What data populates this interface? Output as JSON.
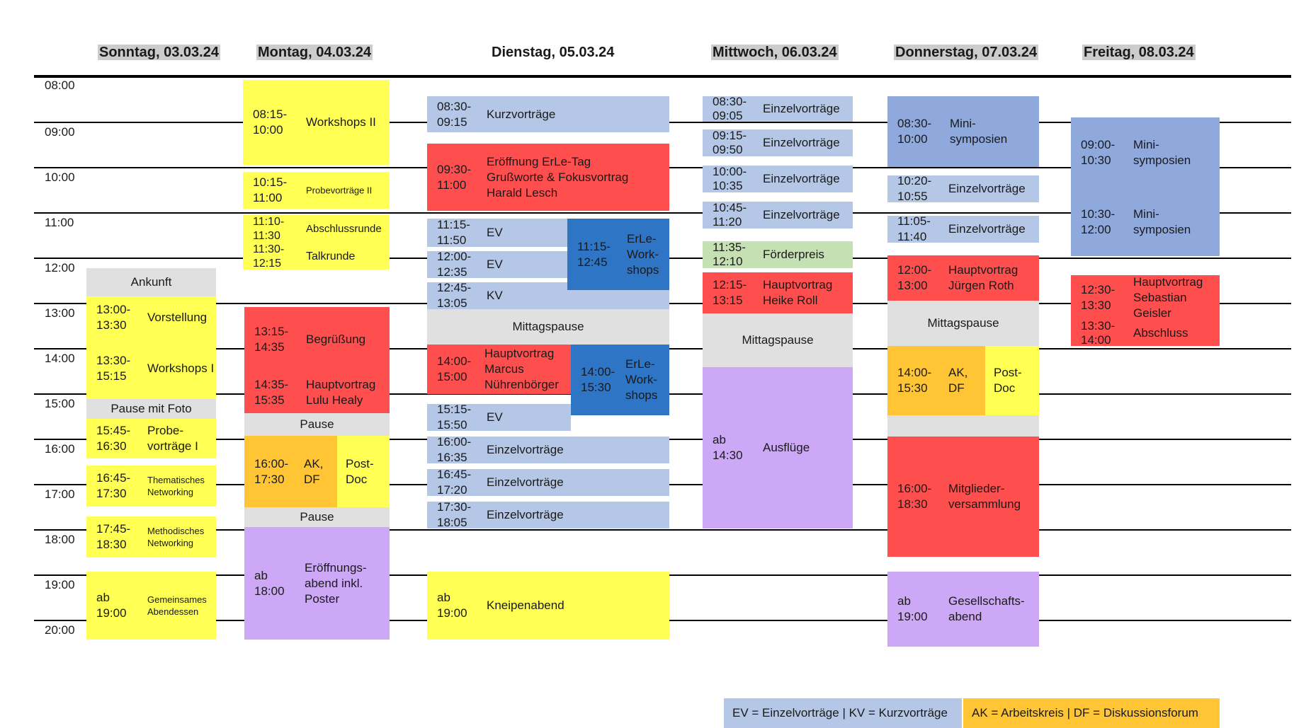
{
  "days": [
    {
      "label": "Sonntag, 03.03.24"
    },
    {
      "label": "Montag, 04.03.24"
    },
    {
      "label": "Dienstag, 05.03.24"
    },
    {
      "label": "Mittwoch, 06.03.24"
    },
    {
      "label": "Donnerstag, 07.03.24"
    },
    {
      "label": "Freitag, 08.03.24"
    }
  ],
  "times": [
    "08:00",
    "09:00",
    "10:00",
    "11:00",
    "12:00",
    "13:00",
    "14:00",
    "15:00",
    "16:00",
    "17:00",
    "18:00",
    "19:00",
    "20:00"
  ],
  "colors": {
    "yellow": "#ffff54",
    "red": "#ff4e4e",
    "light_blue": "#b4c7e7",
    "dark_blue": "#2e75c6",
    "mid_blue": "#8fa9dc",
    "grey": "#e0e0e0",
    "orange": "#ffc534",
    "purple": "#cda8f7",
    "green": "#c5e0b3"
  },
  "events": {
    "sun": {
      "arrival": "Ankunft",
      "vorstellung": {
        "time": "13:00-\n13:30",
        "label": "Vorstellung"
      },
      "workshops1": {
        "time": "13:30-\n15:15",
        "label": "Workshops I"
      },
      "pause_foto": "Pause mit Foto",
      "probe1": {
        "time": "15:45-\n16:30",
        "label": "Probe-\nvorträge I"
      },
      "thematic": {
        "time": "16:45-\n17:30",
        "label": "Thematisches\nNetworking"
      },
      "method": {
        "time": "17:45-\n18:30",
        "label": "Methodisches\nNetworking"
      },
      "dinner": {
        "time": "ab\n19:00",
        "label": "Gemeinsames\nAbendessen"
      }
    },
    "mon": {
      "workshops2": {
        "time": "08:15-\n10:00",
        "label": "Workshops II"
      },
      "probe2": {
        "time": "10:15-\n11:00",
        "label": "Probevorträge II"
      },
      "abschluss": {
        "time": "11:10-\n11:30",
        "label": "Abschlussrunde"
      },
      "talk": {
        "time": "11:30-\n12:15",
        "label": "Talkrunde"
      },
      "begruessung": {
        "time": "13:15-\n14:35",
        "label": "Begrüßung"
      },
      "keynote": {
        "time": "14:35-\n15:35",
        "label": "Hauptvortrag\nLulu Healy"
      },
      "pause1": "Pause",
      "ak": {
        "time": "16:00-\n17:30",
        "label": "AK,\nDF"
      },
      "postdoc": {
        "label": "Post-\nDoc"
      },
      "pause2": "Pause",
      "evening": {
        "time": "ab\n18:00",
        "label": "Eröffnungs-\nabend inkl.\nPoster"
      }
    },
    "tue": {
      "kv1": {
        "time": "08:30-\n09:15",
        "label": "Kurzvorträge"
      },
      "opening": {
        "time": "09:30-\n11:00",
        "label": "Eröffnung ErLe-Tag\nGrußworte & Fokusvortrag\nHarald Lesch"
      },
      "ev1": {
        "time": "11:15-\n11:50",
        "label": "EV"
      },
      "ev2": {
        "time": "12:00-\n12:35",
        "label": "EV"
      },
      "kv2": {
        "time": "12:45-\n13:05",
        "label": "KV"
      },
      "ws1": {
        "time": "11:15-\n12:45",
        "label": "ErLe-\nWork-\nshops"
      },
      "lunch": "Mittagspause",
      "keynote": {
        "time": "14:00-\n15:00",
        "label": "Hauptvortrag\nMarcus\nNührenbörger"
      },
      "ws2": {
        "time": "14:00-\n15:30",
        "label": "ErLe-\nWork-\nshops"
      },
      "ev3": {
        "time": "15:15-\n15:50",
        "label": "EV"
      },
      "ez1": {
        "time": "16:00-\n16:35",
        "label": "Einzelvorträge"
      },
      "ez2": {
        "time": "16:45-\n17:20",
        "label": "Einzelvorträge"
      },
      "ez3": {
        "time": "17:30-\n18:05",
        "label": "Einzelvorträge"
      },
      "pub": {
        "time": "ab\n19:00",
        "label": "Kneipenabend"
      }
    },
    "wed": {
      "ez1": {
        "time": "08:30-\n09:05",
        "label": "Einzelvorträge"
      },
      "ez2": {
        "time": "09:15-\n09:50",
        "label": "Einzelvorträge"
      },
      "ez3": {
        "time": "10:00-\n10:35",
        "label": "Einzelvorträge"
      },
      "ez4": {
        "time": "10:45-\n11:20",
        "label": "Einzelvorträge"
      },
      "prize": {
        "time": "11:35-\n12:10",
        "label": "Förderpreis"
      },
      "keynote": {
        "time": "12:15-\n13:15",
        "label": "Hauptvortrag\nHeike Roll"
      },
      "lunch": "Mittagspause",
      "trips": {
        "time": "ab\n14:30",
        "label": "Ausflüge"
      }
    },
    "thu": {
      "mini": {
        "time": "08:30-\n10:00",
        "label": "Mini-\nsymposien"
      },
      "ez1": {
        "time": "10:20-\n10:55",
        "label": "Einzelvorträge"
      },
      "ez2": {
        "time": "11:05-\n11:40",
        "label": "Einzelvorträge"
      },
      "keynote": {
        "time": "12:00-\n13:00",
        "label": "Hauptvortrag\nJürgen Roth"
      },
      "lunch": "Mittagspause",
      "ak": {
        "time": "14:00-\n15:30",
        "label": "AK,\nDF"
      },
      "postdoc": {
        "label": "Post-\nDoc"
      },
      "assembly": {
        "time": "16:00-\n18:30",
        "label": "Mitglieder-\nversammlung"
      },
      "gala": {
        "time": "ab\n19:00",
        "label": "Gesellschafts-\nabend"
      }
    },
    "fri": {
      "mini1": {
        "time": "09:00-\n10:30",
        "label": "Mini-\nsymposien"
      },
      "mini2": {
        "time": "10:30-\n12:00",
        "label": "Mini-\nsymposien"
      },
      "keynote": {
        "time": "12:30-\n13:30",
        "label": "Hauptvortrag\nSebastian\nGeisler"
      },
      "closing": {
        "time": "13:30-\n14:00",
        "label": "Abschluss"
      }
    }
  },
  "legend": {
    "ev_kv": "EV = Einzelvorträge  |  KV = Kurzvorträge",
    "ak_df": "AK = Arbeitskreis  |  DF = Diskussionsforum"
  }
}
